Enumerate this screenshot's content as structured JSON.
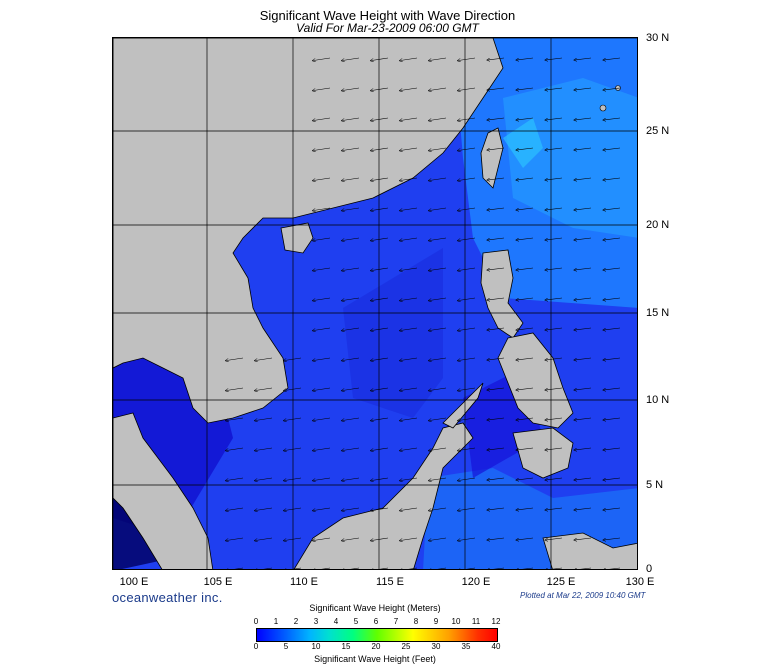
{
  "title": "Significant Wave Height with Wave Direction",
  "subtitle": "Valid For Mar-23-2009 06:00 GMT",
  "lat_labels": [
    "30 N",
    "25 N",
    "20 N",
    "15 N",
    "10 N",
    "5 N",
    "0"
  ],
  "lon_labels": [
    "100 E",
    "105 E",
    "110 E",
    "115 E",
    "120 E",
    "125 E",
    "130 E"
  ],
  "brand": "oceanweather inc.",
  "plotted": "Plotted at Mar 22, 2009 10:40 GMT",
  "colorbar": {
    "title_meters": "Significant Wave Height (Meters)",
    "title_feet": "Significant Wave Height (Feet)",
    "meter_ticks": [
      "0",
      "1",
      "2",
      "3",
      "4",
      "5",
      "6",
      "7",
      "8",
      "9",
      "10",
      "11",
      "12"
    ],
    "feet_ticks": [
      "0",
      "5",
      "10",
      "15",
      "20",
      "25",
      "30",
      "35",
      "40"
    ]
  },
  "colors": {
    "land": "#c0c0c0",
    "sea_base": "#1f3ff0",
    "sea_light": "#1e7dff",
    "sea_dark": "#1010c8",
    "grid": "#000000"
  }
}
